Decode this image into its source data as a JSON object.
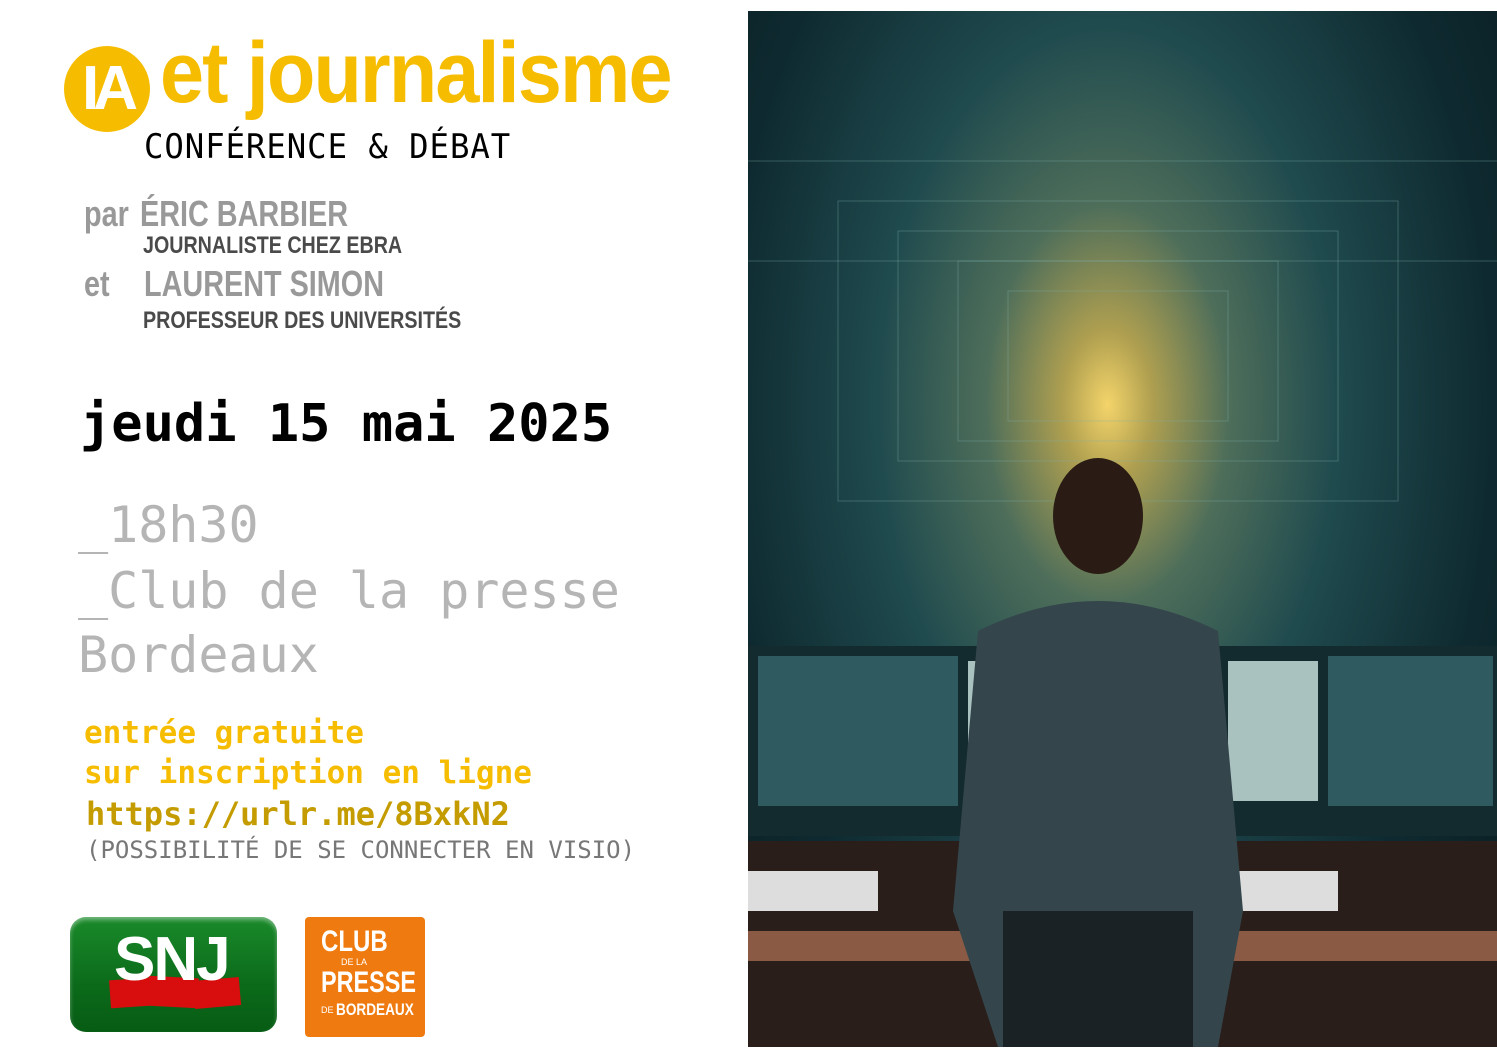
{
  "header": {
    "badge": "IA",
    "title": "et journalisme",
    "subtitle": "CONFÉRENCE & DÉBAT"
  },
  "speakers": [
    {
      "prefix": "par",
      "name": "ÉRIC BARBIER",
      "role": "JOURNALISTE CHEZ EBRA"
    },
    {
      "prefix": "et",
      "name": "LAURENT SIMON",
      "role": "PROFESSEUR DES UNIVERSITÉS"
    }
  ],
  "event": {
    "date": "jeudi 15 mai 2025",
    "time": "_18h30",
    "venue_line1": "_Club de la presse",
    "venue_line2": "Bordeaux"
  },
  "registration": {
    "line1": "entrée gratuite",
    "line2": "sur inscription en ligne",
    "url": "https://urlr.me/8BxkN2",
    "note": "(POSSIBILITÉ DE SE CONNECTER EN VISIO)"
  },
  "logos": {
    "snj": "SNJ",
    "club": {
      "l1": "CLUB",
      "l2": "DE LA",
      "l3": "PRESSE",
      "l4a": "DE",
      "l4b": "BORDEAUX"
    }
  },
  "colors": {
    "accent": "#f6bd00",
    "url": "#c49c00",
    "snj_green": "#0b6a1a",
    "club_orange": "#ef7b10"
  }
}
